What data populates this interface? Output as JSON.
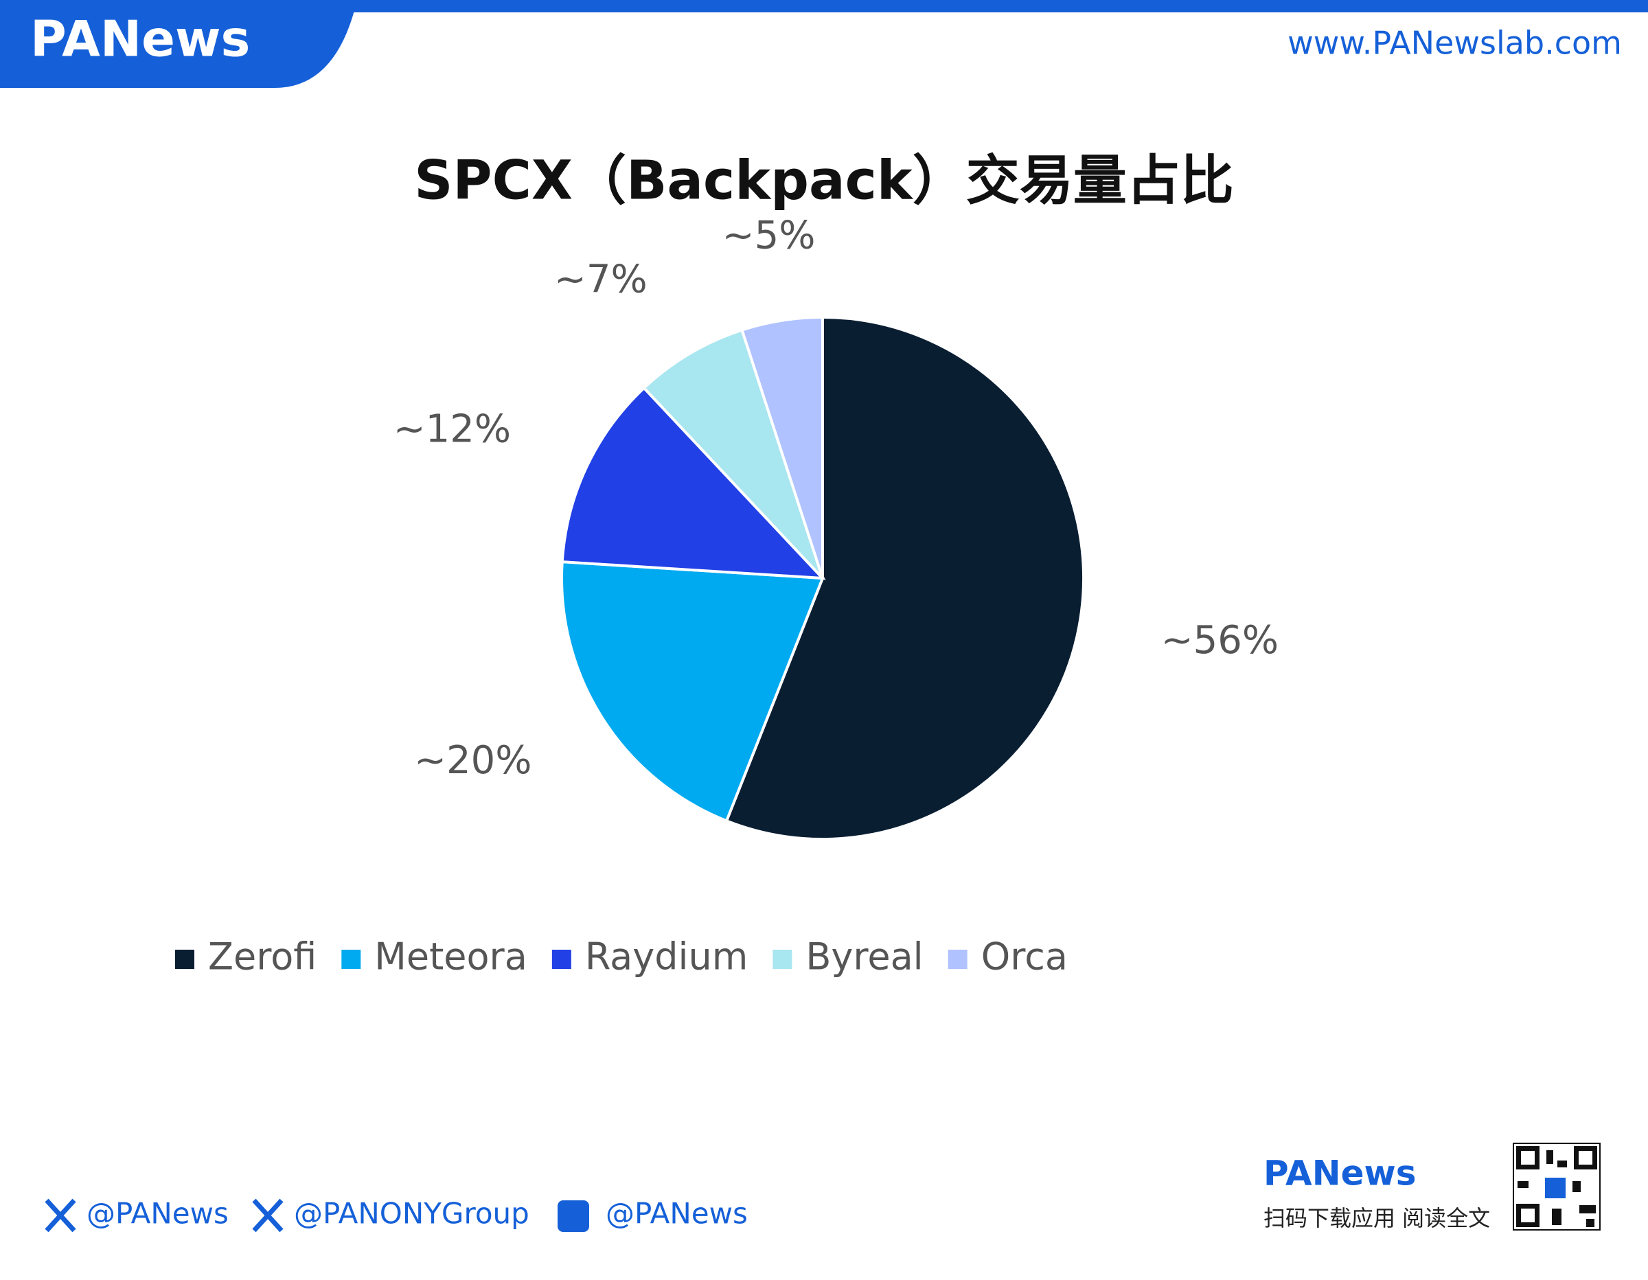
{
  "header": {
    "logo": "PANews",
    "url": "www.PANewslab.com"
  },
  "chart_data": {
    "type": "pie",
    "title": "SPCX（Backpack）交易量占比",
    "categories": [
      "Zerofi",
      "Meteora",
      "Raydium",
      "Byreal",
      "Orca"
    ],
    "values": [
      56,
      20,
      12,
      7,
      5
    ],
    "value_labels": [
      "~56%",
      "~20%",
      "~12%",
      "~7%",
      "~5%"
    ],
    "colors": [
      "#0a1e32",
      "#00aaf0",
      "#2140e6",
      "#a8e6f0",
      "#b0c2ff"
    ]
  },
  "footer": {
    "social": [
      "@PANews",
      "@PANONYGroup",
      "@PANews"
    ],
    "brand": "PANews",
    "cta": "扫码下载应用 阅读全文"
  }
}
